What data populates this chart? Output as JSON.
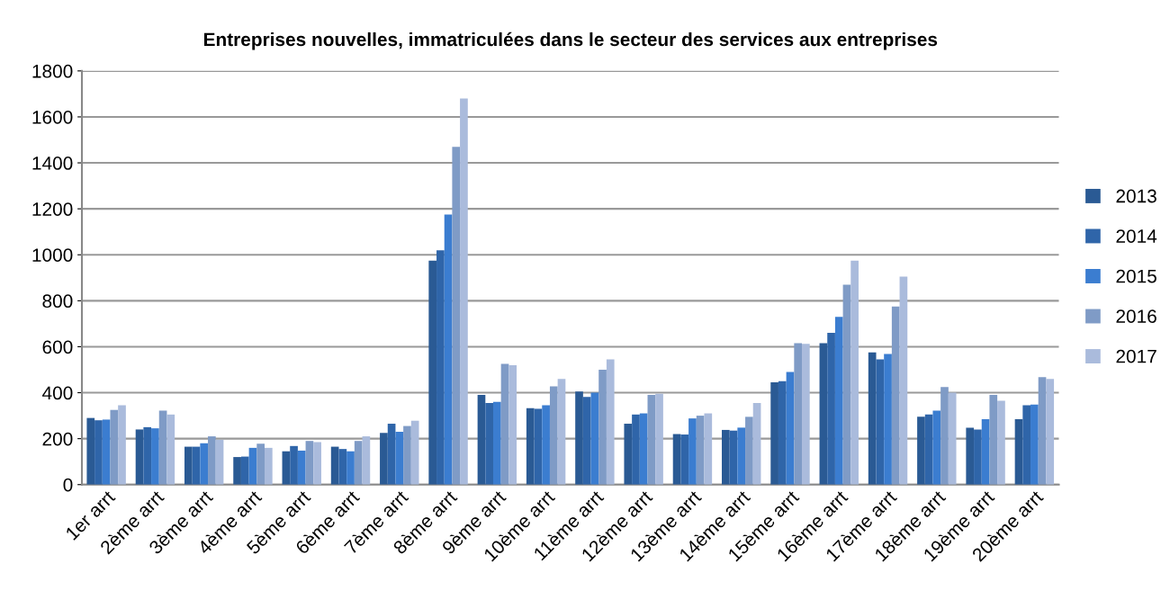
{
  "chart_data": {
    "type": "bar",
    "title": "Entreprises nouvelles, immatriculées dans le secteur des services aux entreprises",
    "categories": [
      "1er arrt",
      "2ème arrt",
      "3ème arrt",
      "4ème arrt",
      "5ème arrt",
      "6ème arrt",
      "7ème arrt",
      "8ème arrt",
      "9ème arrt",
      "10ème arrt",
      "11ème arrt",
      "12ème arrt",
      "13ème arrt",
      "14ème arrt",
      "15ème arrt",
      "16ème arrt",
      "17ème arrt",
      "18ème arrt",
      "19ème arrt",
      "20ème arrt"
    ],
    "series": [
      {
        "name": "2013",
        "color": "#2a5a94",
        "values": [
          290,
          240,
          165,
          120,
          145,
          165,
          225,
          975,
          390,
          333,
          405,
          265,
          220,
          238,
          445,
          615,
          575,
          295,
          248,
          285
        ]
      },
      {
        "name": "2014",
        "color": "#2f65a9",
        "values": [
          280,
          250,
          165,
          122,
          168,
          155,
          265,
          1020,
          355,
          330,
          382,
          305,
          218,
          235,
          450,
          660,
          545,
          305,
          240,
          345
        ]
      },
      {
        "name": "2015",
        "color": "#3b7dd0",
        "values": [
          283,
          245,
          180,
          160,
          148,
          145,
          230,
          1175,
          360,
          345,
          400,
          310,
          288,
          248,
          490,
          730,
          568,
          322,
          285,
          348
        ]
      },
      {
        "name": "2016",
        "color": "#7f9bc6",
        "values": [
          325,
          322,
          210,
          178,
          190,
          190,
          255,
          1470,
          525,
          428,
          500,
          390,
          300,
          295,
          615,
          870,
          775,
          425,
          390,
          468
        ]
      },
      {
        "name": "2017",
        "color": "#aabbdc",
        "values": [
          345,
          305,
          195,
          160,
          185,
          210,
          278,
          1680,
          520,
          460,
          545,
          395,
          310,
          355,
          612,
          975,
          905,
          400,
          365,
          460
        ]
      }
    ],
    "ylim": [
      0,
      1800
    ],
    "yticks": [
      0,
      200,
      400,
      600,
      800,
      1000,
      1200,
      1400,
      1600,
      1800
    ],
    "grid": "y",
    "legend": "right"
  }
}
